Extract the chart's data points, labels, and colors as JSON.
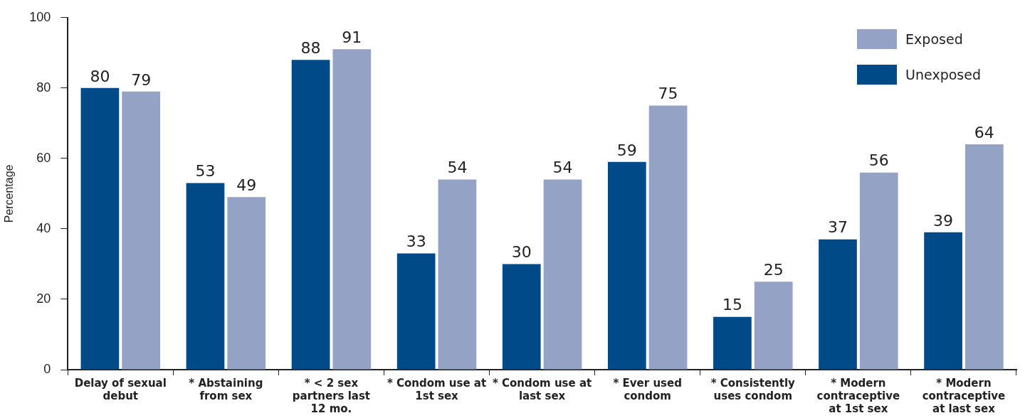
{
  "chart_data": {
    "type": "bar",
    "ylabel": "Percentage",
    "categories": [
      "Delay of sexual debut",
      "* Abstaining from sex",
      "* < 2 sex partners last 12 mo.",
      "* Condom use at 1st sex",
      "* Condom use at last sex",
      "* Ever used condom",
      "* Consistently uses condom",
      "* Modern contraceptive at 1st sex",
      "* Modern contraceptive at last sex"
    ],
    "series": [
      {
        "name": "Unexposed",
        "color": "#004b87",
        "values": [
          80,
          53,
          88,
          33,
          30,
          59,
          15,
          37,
          39
        ]
      },
      {
        "name": "Exposed",
        "color": "#93a2c5",
        "values": [
          79,
          49,
          91,
          54,
          54,
          75,
          25,
          56,
          64
        ]
      }
    ],
    "ylim": [
      0,
      100
    ],
    "yticks": [
      0,
      20,
      40,
      60,
      80,
      100
    ],
    "grid": false,
    "legend": "top right",
    "data_labels": true
  }
}
